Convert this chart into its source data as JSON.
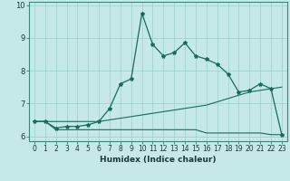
{
  "xlabel": "Humidex (Indice chaleur)",
  "background_color": "#c5e8e8",
  "line_color": "#1a6b5a",
  "grid_color": "#9ecece",
  "xlim": [
    -0.5,
    23.5
  ],
  "ylim": [
    5.85,
    10.1
  ],
  "yticks": [
    6,
    7,
    8,
    9,
    10
  ],
  "xticks": [
    0,
    1,
    2,
    3,
    4,
    5,
    6,
    7,
    8,
    9,
    10,
    11,
    12,
    13,
    14,
    15,
    16,
    17,
    18,
    19,
    20,
    21,
    22,
    23
  ],
  "line1_x": [
    0,
    1,
    2,
    3,
    4,
    5,
    6,
    7,
    8,
    9,
    10,
    11,
    12,
    13,
    14,
    15,
    16,
    17,
    18,
    19,
    20,
    21,
    22,
    23
  ],
  "line1_y": [
    6.45,
    6.45,
    6.25,
    6.3,
    6.3,
    6.35,
    6.45,
    6.85,
    7.6,
    7.75,
    9.75,
    8.8,
    8.45,
    8.55,
    8.85,
    8.45,
    8.35,
    8.2,
    7.9,
    7.35,
    7.4,
    7.6,
    7.45,
    6.05
  ],
  "line2_x": [
    0,
    1,
    2,
    3,
    4,
    5,
    6,
    7,
    8,
    9,
    10,
    11,
    12,
    13,
    14,
    15,
    16,
    17,
    18,
    19,
    20,
    21,
    22,
    23
  ],
  "line2_y": [
    6.45,
    6.45,
    6.45,
    6.45,
    6.45,
    6.45,
    6.45,
    6.5,
    6.55,
    6.6,
    6.65,
    6.7,
    6.75,
    6.8,
    6.85,
    6.9,
    6.95,
    7.05,
    7.15,
    7.25,
    7.35,
    7.4,
    7.45,
    7.5
  ],
  "line3_x": [
    0,
    1,
    2,
    3,
    4,
    5,
    6,
    7,
    8,
    9,
    10,
    11,
    12,
    13,
    14,
    15,
    16,
    17,
    18,
    19,
    20,
    21,
    22,
    23
  ],
  "line3_y": [
    6.45,
    6.45,
    6.2,
    6.2,
    6.2,
    6.2,
    6.2,
    6.2,
    6.2,
    6.2,
    6.2,
    6.2,
    6.2,
    6.2,
    6.2,
    6.2,
    6.1,
    6.1,
    6.1,
    6.1,
    6.1,
    6.1,
    6.05,
    6.05
  ],
  "xlabel_fontsize": 6.5,
  "tick_fontsize": 5.5,
  "ytick_fontsize": 6.0
}
